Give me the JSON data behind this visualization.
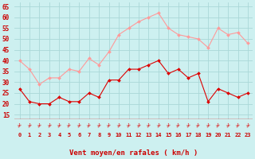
{
  "hours": [
    0,
    1,
    2,
    3,
    4,
    5,
    6,
    7,
    8,
    9,
    10,
    11,
    12,
    13,
    14,
    15,
    16,
    17,
    18,
    19,
    20,
    21,
    22,
    23
  ],
  "wind_avg": [
    27,
    21,
    20,
    20,
    23,
    21,
    21,
    25,
    23,
    31,
    31,
    36,
    36,
    38,
    40,
    34,
    36,
    32,
    34,
    21,
    27,
    25,
    23,
    25
  ],
  "wind_gust": [
    40,
    36,
    29,
    32,
    32,
    36,
    35,
    41,
    38,
    44,
    52,
    55,
    58,
    60,
    62,
    55,
    52,
    51,
    50,
    46,
    55,
    52,
    53,
    48
  ],
  "bg_color": "#cdf0f0",
  "grid_color": "#aad8d8",
  "avg_color": "#dd0000",
  "gust_color": "#ff9999",
  "xlabel": "Vent moyen/en rafales ( km/h )",
  "xlabel_color": "#cc0000",
  "tick_label_color": "#cc0000",
  "ylim_min": 13,
  "ylim_max": 67,
  "ytick_vals": [
    15,
    20,
    25,
    30,
    35,
    40,
    45,
    50,
    55,
    60,
    65
  ],
  "ytick_labels": [
    "15",
    "20",
    "25",
    "30",
    "35",
    "40",
    "45",
    "50",
    "55",
    "60",
    "65"
  ]
}
